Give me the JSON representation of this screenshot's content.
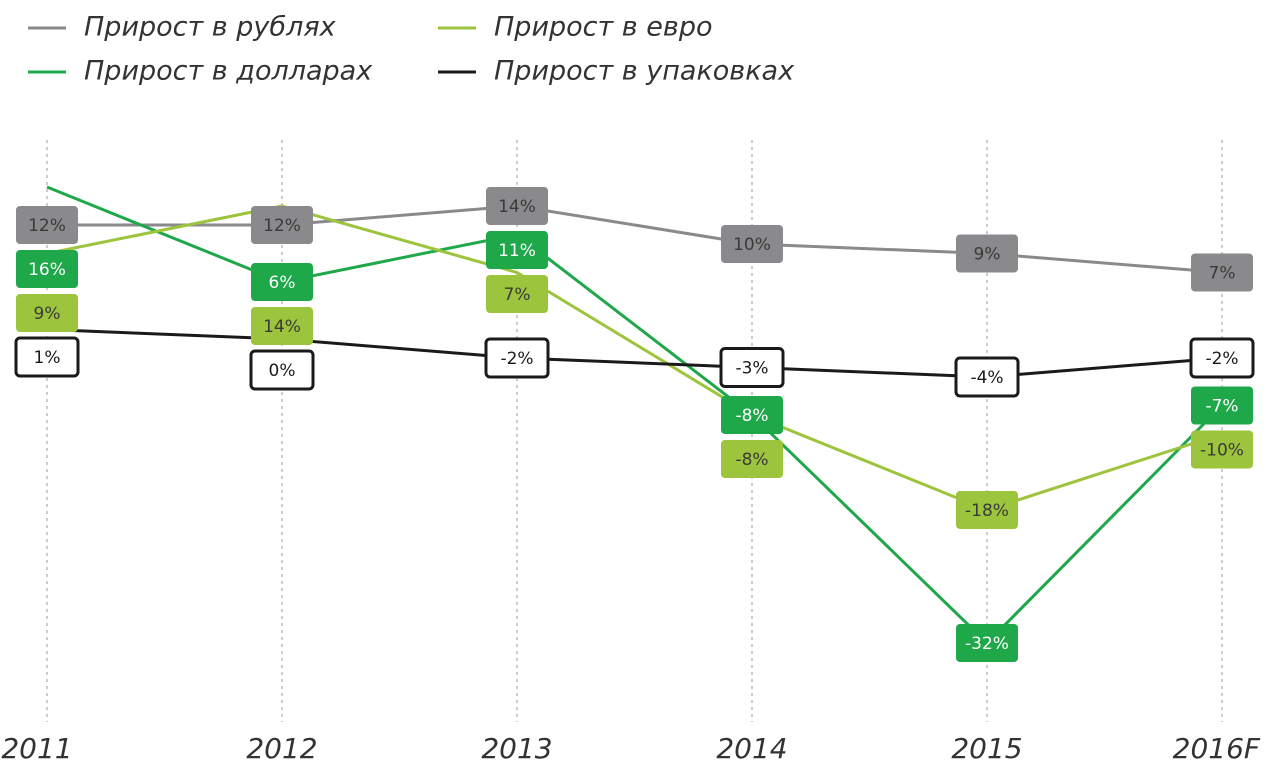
{
  "chart_data": {
    "type": "line",
    "categories": [
      "2011",
      "2012",
      "2013",
      "2014",
      "2015",
      "2016F"
    ],
    "series": [
      {
        "name": "Прирост в рублях",
        "color": "#8a8a8c",
        "values": [
          12,
          12,
          14,
          10,
          9,
          7
        ],
        "value_labels": [
          "12%",
          "12%",
          "14%",
          "10%",
          "9%",
          "7%"
        ]
      },
      {
        "name": "Прирост в долларах",
        "color": "#1fa84a",
        "values": [
          16,
          6,
          11,
          -8,
          -32,
          -7
        ],
        "value_labels": [
          "16%",
          "6%",
          "11%",
          "-8%",
          "-32%",
          "-7%"
        ]
      },
      {
        "name": "Прирост в евро",
        "color": "#9cc43c",
        "values": [
          9,
          14,
          7,
          -8,
          -18,
          -10
        ],
        "value_labels": [
          "9%",
          "14%",
          "7%",
          "-8%",
          "-18%",
          "-10%"
        ]
      },
      {
        "name": "Прирост в упаковках",
        "color": "#1a1a1a",
        "values": [
          1,
          0,
          -2,
          -3,
          -4,
          -2
        ],
        "value_labels": [
          "1%",
          "0%",
          "-2%",
          "-3%",
          "-4%",
          "-2%"
        ]
      }
    ],
    "grid": true
  }
}
